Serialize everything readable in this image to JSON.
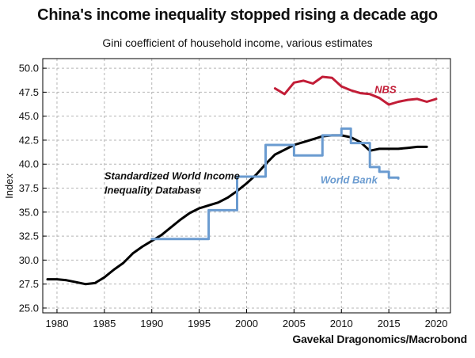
{
  "chart_data": {
    "type": "line",
    "title": "China's income inequality stopped rising a decade ago",
    "subtitle": "Gini coefficient of household income, various estimates",
    "ylabel": "Index",
    "xlabel": "",
    "source": "Gavekal Dragonomics/Macrobond",
    "xlim": [
      1978.5,
      2021.5
    ],
    "ylim": [
      24.5,
      51
    ],
    "xticks": [
      1980,
      1985,
      1990,
      1995,
      2000,
      2005,
      2010,
      2015,
      2020
    ],
    "xtick_labels": [
      "1980",
      "1985",
      "1990",
      "1995",
      "2000",
      "2005",
      "2010",
      "2015",
      "2020"
    ],
    "yticks": [
      25,
      27.5,
      30,
      32.5,
      35,
      37.5,
      40,
      42.5,
      45,
      47.5,
      50
    ],
    "ytick_labels": [
      "25.0",
      "27.5",
      "30.0",
      "32.5",
      "35.0",
      "37.5",
      "40.0",
      "42.5",
      "45.0",
      "47.5",
      "50.0"
    ],
    "grid": true,
    "series": [
      {
        "name": "Standardized World Income Inequality Database",
        "label_lines": [
          "Standardized World Income",
          "Inequality Database"
        ],
        "color": "#000000",
        "step": false,
        "x": [
          1979,
          1980,
          1981,
          1982,
          1983,
          1984,
          1985,
          1986,
          1987,
          1988,
          1989,
          1990,
          1991,
          1992,
          1993,
          1994,
          1995,
          1996,
          1997,
          1998,
          1999,
          2000,
          2001,
          2002,
          2003,
          2004,
          2005,
          2006,
          2007,
          2008,
          2009,
          2010,
          2011,
          2012,
          2013,
          2014,
          2015,
          2016,
          2017,
          2018,
          2019
        ],
        "values": [
          28.0,
          28.0,
          27.9,
          27.7,
          27.5,
          27.6,
          28.2,
          29.0,
          29.7,
          30.7,
          31.4,
          32.0,
          32.6,
          33.4,
          34.2,
          34.9,
          35.4,
          35.7,
          36.0,
          36.5,
          37.2,
          38.0,
          38.9,
          40.0,
          41.0,
          41.5,
          42.0,
          42.3,
          42.6,
          42.9,
          43.0,
          43.0,
          42.8,
          42.3,
          41.4,
          41.6,
          41.6,
          41.6,
          41.7,
          41.8,
          41.8
        ]
      },
      {
        "name": "World Bank",
        "label_lines": [
          "World Bank"
        ],
        "color": "#6a9bd0",
        "step": true,
        "x": [
          1990,
          1996,
          1999,
          2002,
          2005,
          2008,
          2010,
          2011,
          2013,
          2014,
          2015,
          2016
        ],
        "values": [
          32.2,
          35.2,
          38.7,
          42.0,
          40.9,
          43.0,
          43.7,
          42.2,
          39.7,
          39.2,
          38.6,
          38.5
        ]
      },
      {
        "name": "NBS",
        "label_lines": [
          "NBS"
        ],
        "color": "#c21d37",
        "step": false,
        "x": [
          2003,
          2004,
          2005,
          2006,
          2007,
          2008,
          2009,
          2010,
          2011,
          2012,
          2013,
          2014,
          2015,
          2016,
          2017,
          2018,
          2019,
          2020
        ],
        "values": [
          47.9,
          47.3,
          48.5,
          48.7,
          48.4,
          49.1,
          49.0,
          48.1,
          47.7,
          47.4,
          47.3,
          46.9,
          46.2,
          46.5,
          46.7,
          46.8,
          46.5,
          46.8
        ]
      }
    ]
  }
}
